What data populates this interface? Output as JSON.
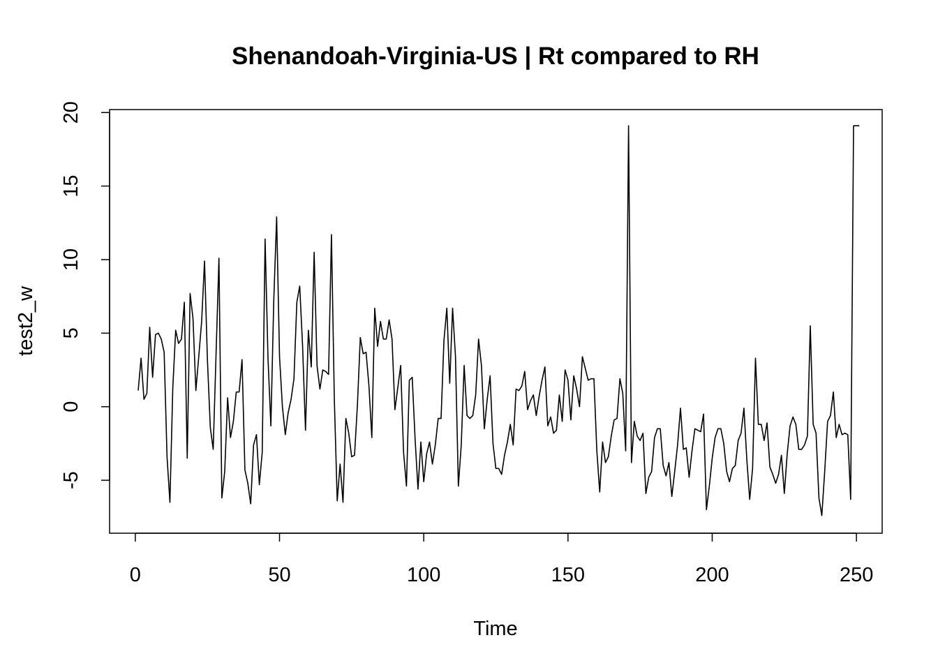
{
  "chart_data": {
    "type": "line",
    "title": "Shenandoah-Virginia-US | Rt compared to RH",
    "xlabel": "Time",
    "ylabel": "test2_w",
    "xlim": [
      -8.92,
      258.92
    ],
    "ylim": [
      -8.6,
      20.2
    ],
    "xticks": [
      0,
      50,
      100,
      150,
      200,
      250
    ],
    "yticks": [
      -5,
      0,
      5,
      10,
      15,
      20
    ],
    "grid": false,
    "line_color": "#000000",
    "series": [
      {
        "x_start": 1,
        "x_step": 1,
        "values": [
          1.1,
          3.3,
          0.5,
          0.9,
          5.4,
          2.0,
          4.9,
          5.0,
          4.6,
          3.7,
          -3.4,
          -6.5,
          1.3,
          5.2,
          4.3,
          4.6,
          7.1,
          -3.5,
          7.7,
          6.0,
          1.1,
          3.4,
          5.8,
          9.9,
          3.2,
          -1.4,
          -2.9,
          3.6,
          10.1,
          -6.2,
          -4.4,
          0.6,
          -2.1,
          -1.0,
          1.0,
          1.0,
          3.2,
          -4.3,
          -5.2,
          -6.6,
          -2.6,
          -1.9,
          -5.3,
          -3.1,
          11.4,
          3.3,
          -1.3,
          7.2,
          12.9,
          3.4,
          0.0,
          -1.9,
          -0.4,
          0.5,
          1.9,
          7.1,
          8.2,
          4.1,
          -1.6,
          5.2,
          2.7,
          10.5,
          2.8,
          1.2,
          2.5,
          2.4,
          2.2,
          11.7,
          0.5,
          -6.4,
          -3.9,
          -6.5,
          -0.8,
          -1.8,
          -3.4,
          -3.3,
          0.1,
          4.7,
          3.6,
          3.7,
          1.4,
          -2.1,
          6.7,
          4.1,
          5.8,
          4.6,
          4.6,
          5.9,
          4.6,
          -0.2,
          1.3,
          2.8,
          -3.1,
          -5.4,
          1.8,
          2.0,
          -2.2,
          -5.6,
          -2.4,
          -5.1,
          -3.2,
          -2.4,
          -3.9,
          -2.6,
          -0.8,
          -0.8,
          4.5,
          6.7,
          1.6,
          6.7,
          3.4,
          -5.4,
          -2.6,
          2.8,
          -0.6,
          -0.8,
          -0.6,
          0.8,
          4.6,
          2.8,
          -1.5,
          0.5,
          2.1,
          -2.5,
          -4.2,
          -4.2,
          -4.6,
          -3.3,
          -2.4,
          -1.2,
          -2.6,
          1.2,
          1.1,
          1.4,
          2.4,
          -0.2,
          0.4,
          0.8,
          -0.6,
          0.7,
          1.8,
          2.7,
          -1.3,
          -0.7,
          -1.8,
          -1.6,
          0.8,
          -1.0,
          2.5,
          1.8,
          -0.9,
          2.1,
          1.2,
          0.0,
          3.4,
          2.6,
          1.8,
          1.9,
          1.9,
          -3.0,
          -5.8,
          -2.4,
          -3.8,
          -3.4,
          -2.0,
          -0.9,
          -0.8,
          1.9,
          0.9,
          -3.0,
          19.1,
          -3.8,
          -1.0,
          -2.0,
          -2.3,
          -1.8,
          -5.9,
          -4.8,
          -4.4,
          -2.1,
          -1.5,
          -1.5,
          -4.0,
          -4.7,
          -3.8,
          -6.1,
          -4.4,
          -2.6,
          -0.1,
          -2.9,
          -2.8,
          -4.8,
          -3.0,
          -1.5,
          -1.6,
          -1.7,
          -0.5,
          -7.0,
          -5.4,
          -3.5,
          -2.1,
          -1.5,
          -1.5,
          -2.5,
          -4.4,
          -5.1,
          -4.2,
          -4.0,
          -2.3,
          -1.8,
          -0.1,
          -3.6,
          -6.3,
          -4.2,
          3.3,
          -1.2,
          -1.2,
          -2.3,
          -1.1,
          -4.1,
          -4.6,
          -5.2,
          -4.6,
          -3.3,
          -5.9,
          -3.2,
          -1.3,
          -0.7,
          -1.2,
          -2.9,
          -2.9,
          -2.6,
          -2.0,
          5.5,
          -1.2,
          -1.8,
          -6.2,
          -7.4,
          -4.4,
          -1.0,
          -0.6,
          1.0,
          -2.1,
          -1.2,
          -1.9,
          -1.8,
          -1.9,
          -6.3,
          19.1,
          19.1,
          19.1
        ]
      }
    ]
  }
}
